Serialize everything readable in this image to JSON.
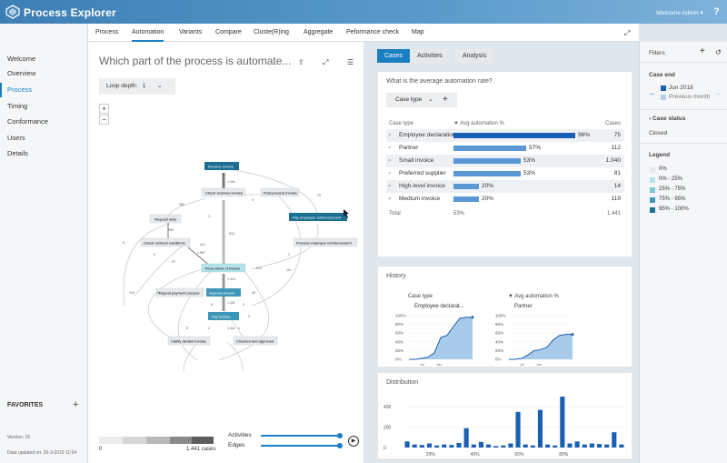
{
  "app": {
    "title": "Process Explorer",
    "welcome": "Welcome Admin",
    "help": "?"
  },
  "sidebar": {
    "items": [
      {
        "label": "Welcome"
      },
      {
        "label": "Overview"
      },
      {
        "label": "Process"
      },
      {
        "label": "Timing"
      },
      {
        "label": "Conformance"
      },
      {
        "label": "Users"
      },
      {
        "label": "Details"
      }
    ],
    "active": "Process",
    "favorites": "FAVORITES",
    "version": "Version: 15",
    "updated": "Data updated on: 20-3-2019 11:54"
  },
  "tabs": [
    "Process",
    "Automation",
    "Variants",
    "Compare",
    "Cluste(R)ing",
    "Aggregate",
    "Peformance check",
    "Map"
  ],
  "active_tab": "Automation",
  "left": {
    "question": "Which part of the process is automate...",
    "loop_label": "Loop depth:",
    "loop_value": "1",
    "zoom_in": "+",
    "zoom_out": "−",
    "slider_min": "0",
    "slider_max": "1.441",
    "slider_unit": "cases",
    "activities": "Activities",
    "edges": "Edges"
  },
  "map": {
    "nodes": [
      "Receive invoice",
      "Check received invoice",
      "Post-process invoice",
      "Request data",
      "Pay employee reimbursement",
      "Check contract conditions",
      "Process employee reimbursement",
      "Final check of invoice",
      "Repeat payment process",
      "Approve invoice",
      "Pay invoice",
      "Clarify deviant invoice",
      "Checked and approved"
    ],
    "edge_labels": [
      "1.441",
      "383",
      "1",
      "9",
      "75",
      "980",
      "8",
      "1.067",
      "612",
      "1",
      "5",
      "97",
      "1.413",
      "574",
      "45",
      "1.401",
      "1.441",
      "6",
      "3",
      "4",
      "111",
      "113",
      "8",
      "2",
      "1",
      "76",
      "210",
      "1.100",
      "11",
      "7",
      "148",
      "141",
      "2"
    ]
  },
  "right": {
    "tabs": [
      "Cases",
      "Activities",
      "Analysis"
    ],
    "active": "Cases",
    "question": "What is the average automation rate?",
    "case_type_btn": "Case type",
    "col1": "Case type",
    "col2": "▼ Avg automation %",
    "col3": "Cases",
    "rows": [
      {
        "type": "Employee declaration",
        "pct": "96%",
        "val": 96,
        "cases": "75"
      },
      {
        "type": "Partner",
        "pct": "57%",
        "val": 57,
        "cases": "112"
      },
      {
        "type": "Small invoice",
        "pct": "53%",
        "val": 53,
        "cases": "1.040"
      },
      {
        "type": "Preferred supplier",
        "pct": "53%",
        "val": 53,
        "cases": "81"
      },
      {
        "type": "High-level invoice",
        "pct": "20%",
        "val": 20,
        "cases": "14"
      },
      {
        "type": "Medium invoice",
        "pct": "20%",
        "val": 20,
        "cases": "119"
      }
    ],
    "total_label": "Total",
    "total_pct": "53%",
    "total_cases": "1.441",
    "history_title": "History",
    "history_col1": "Case type",
    "history_col2": "▼ Avg automation %",
    "history_series": [
      "Employee declarat...",
      "Partner"
    ],
    "history_yticks": [
      "100%",
      "80%",
      "60%",
      "40%",
      "20%",
      "0%"
    ],
    "history_xticks": [
      "Jul",
      "Jan"
    ],
    "distribution_title": "Distribution",
    "dist_yticks": [
      "400",
      "200",
      "0"
    ],
    "dist_xticks": [
      "20%",
      "40%",
      "60%",
      "80%"
    ]
  },
  "chart_data": [
    {
      "type": "line",
      "title": "Employee declarat...",
      "y_range": [
        0,
        100
      ],
      "values": [
        0,
        0,
        2,
        5,
        15,
        50,
        55,
        75,
        94,
        96,
        96
      ]
    },
    {
      "type": "line",
      "title": "Partner",
      "y_range": [
        0,
        100
      ],
      "values": [
        0,
        0,
        2,
        10,
        20,
        22,
        28,
        45,
        55,
        57,
        57
      ]
    },
    {
      "type": "bar",
      "title": "Distribution",
      "y_range": [
        0,
        500
      ],
      "values": [
        60,
        30,
        25,
        40,
        20,
        30,
        25,
        45,
        190,
        30,
        55,
        30,
        15,
        20,
        40,
        350,
        30,
        20,
        370,
        30,
        20,
        500,
        40,
        60,
        30,
        40,
        35,
        30,
        150,
        30
      ]
    }
  ],
  "filters": {
    "title": "Filters",
    "case_end": "Case end",
    "case_end_value": "Jun 2018",
    "case_end_prev": "Previous month",
    "case_status": "Case status",
    "case_status_value": "Closed",
    "legend": "Legend",
    "legend_items": [
      {
        "label": "0%",
        "color": "#e5e9ec"
      },
      {
        "label": "0% - 25%",
        "color": "#b5e3ea"
      },
      {
        "label": "25% - 75%",
        "color": "#79c6d5"
      },
      {
        "label": "75% - 95%",
        "color": "#3e97b8"
      },
      {
        "label": "95% - 100%",
        "color": "#1a6f93"
      }
    ]
  }
}
